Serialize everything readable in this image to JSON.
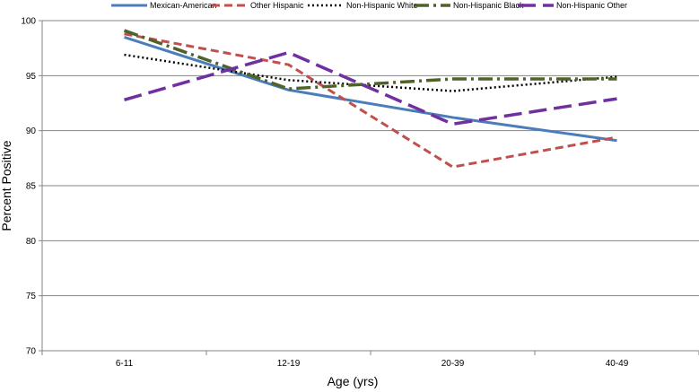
{
  "chart_data": {
    "type": "line",
    "title": "",
    "xlabel": "Age (yrs)",
    "ylabel": "Percent Positive",
    "categories": [
      "6-11",
      "12-19",
      "20-39",
      "40-49"
    ],
    "ylim": [
      70,
      100
    ],
    "yticks": [
      70,
      75,
      80,
      85,
      90,
      95,
      100
    ],
    "grid": "horizontal",
    "legend_position": "top",
    "series": [
      {
        "name": "Mexican-American",
        "values": [
          98.5,
          93.7,
          91.2,
          89.1
        ],
        "color": "#4a7ebb",
        "style": "solid"
      },
      {
        "name": "Other Hispanic",
        "values": [
          98.8,
          96.0,
          86.7,
          89.4
        ],
        "color": "#c0504d",
        "style": "dashed"
      },
      {
        "name": "Non-Hispanic White",
        "values": [
          96.9,
          94.6,
          93.6,
          94.9
        ],
        "color": "#000000",
        "style": "dotted"
      },
      {
        "name": "Non-Hispanic Black",
        "values": [
          99.1,
          93.8,
          94.7,
          94.7
        ],
        "color": "#4f6228",
        "style": "dashdot"
      },
      {
        "name": "Non-Hispanic Other",
        "values": [
          92.8,
          97.1,
          90.6,
          92.9
        ],
        "color": "#7030a0",
        "style": "longdash"
      }
    ]
  }
}
